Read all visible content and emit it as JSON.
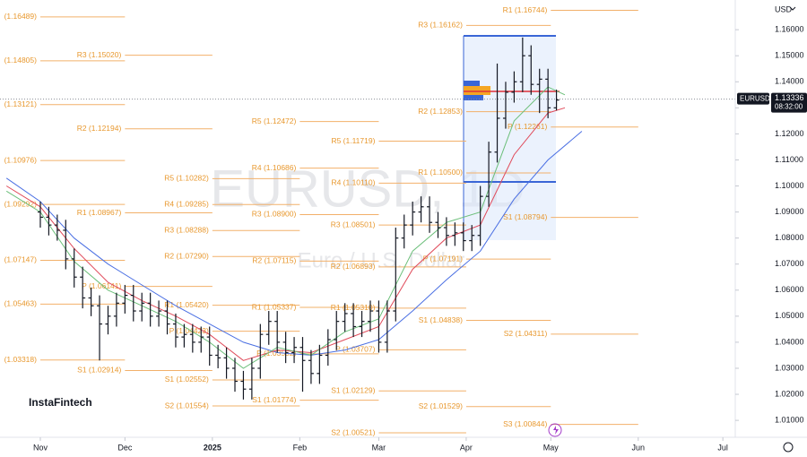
{
  "chart_data": {
    "type": "ohlc",
    "title": "EURUSD, 1D",
    "subtitle": "Euro / U.S. Dollar",
    "currency": "USD",
    "symbol": "EURUSD",
    "time": "08:32:00",
    "last_price": 1.13336,
    "color": "#131722",
    "x": [
      0,
      3,
      6,
      9,
      12,
      15,
      18,
      21,
      24,
      27,
      30,
      33,
      36,
      39,
      42,
      45,
      48,
      51,
      54,
      57,
      60,
      63,
      66,
      69,
      72,
      75,
      78,
      81,
      84,
      87,
      90,
      93,
      96,
      99,
      102,
      105,
      108,
      111,
      114,
      117,
      120,
      123,
      126,
      129,
      132,
      135,
      138,
      141,
      144,
      147,
      150,
      153,
      156,
      159,
      162,
      165,
      168,
      171,
      174,
      177,
      180,
      183
    ],
    "open": [
      1.09,
      1.088,
      1.085,
      1.083,
      1.072,
      1.065,
      1.057,
      1.054,
      1.047,
      1.05,
      1.055,
      1.058,
      1.052,
      1.055,
      1.05,
      1.052,
      1.047,
      1.042,
      1.043,
      1.04,
      1.042,
      1.035,
      1.034,
      1.03,
      1.025,
      1.022,
      1.03,
      1.043,
      1.048,
      1.04,
      1.036,
      1.038,
      1.033,
      1.028,
      1.035,
      1.041,
      1.048,
      1.051,
      1.046,
      1.048,
      1.052,
      1.04,
      1.052,
      1.08,
      1.085,
      1.09,
      1.092,
      1.086,
      1.084,
      1.081,
      1.082,
      1.079,
      1.081,
      1.096,
      1.113,
      1.126,
      1.136,
      1.14,
      1.15,
      1.139,
      1.141,
      1.13
    ],
    "high": [
      1.094,
      1.092,
      1.089,
      1.087,
      1.076,
      1.069,
      1.061,
      1.058,
      1.054,
      1.059,
      1.062,
      1.062,
      1.059,
      1.059,
      1.056,
      1.056,
      1.051,
      1.047,
      1.047,
      1.046,
      1.046,
      1.039,
      1.038,
      1.034,
      1.029,
      1.034,
      1.047,
      1.052,
      1.052,
      1.044,
      1.042,
      1.042,
      1.037,
      1.039,
      1.045,
      1.052,
      1.055,
      1.055,
      1.052,
      1.056,
      1.056,
      1.056,
      1.084,
      1.089,
      1.094,
      1.096,
      1.096,
      1.09,
      1.088,
      1.086,
      1.086,
      1.085,
      1.1,
      1.117,
      1.147,
      1.14,
      1.144,
      1.157,
      1.154,
      1.145,
      1.145,
      1.137
    ],
    "low": [
      1.084,
      1.081,
      1.079,
      1.068,
      1.061,
      1.053,
      1.05,
      1.033,
      1.043,
      1.046,
      1.051,
      1.048,
      1.048,
      1.046,
      1.046,
      1.043,
      1.038,
      1.038,
      1.036,
      1.036,
      1.031,
      1.03,
      1.026,
      1.021,
      1.018,
      1.018,
      1.026,
      1.039,
      1.036,
      1.032,
      1.032,
      1.021,
      1.024,
      1.024,
      1.031,
      1.037,
      1.044,
      1.042,
      1.042,
      1.044,
      1.036,
      1.036,
      1.048,
      1.076,
      1.081,
      1.086,
      1.082,
      1.08,
      1.077,
      1.077,
      1.075,
      1.075,
      1.077,
      1.092,
      1.109,
      1.122,
      1.132,
      1.136,
      1.135,
      1.128,
      1.126,
      1.129
    ],
    "close": [
      1.088,
      1.085,
      1.083,
      1.072,
      1.065,
      1.057,
      1.054,
      1.047,
      1.05,
      1.055,
      1.058,
      1.052,
      1.055,
      1.05,
      1.052,
      1.047,
      1.042,
      1.043,
      1.04,
      1.042,
      1.035,
      1.034,
      1.03,
      1.025,
      1.022,
      1.03,
      1.043,
      1.048,
      1.04,
      1.036,
      1.038,
      1.033,
      1.028,
      1.035,
      1.041,
      1.048,
      1.051,
      1.046,
      1.048,
      1.052,
      1.04,
      1.052,
      1.08,
      1.085,
      1.09,
      1.092,
      1.086,
      1.084,
      1.081,
      1.082,
      1.079,
      1.081,
      1.096,
      1.113,
      1.126,
      1.136,
      1.14,
      1.15,
      1.139,
      1.141,
      1.13,
      1.133
    ],
    "moving_averages": [
      {
        "color": "#4a6fe3",
        "x": [
          -12,
          0,
          12,
          24,
          36,
          48,
          60,
          72,
          84,
          96,
          108,
          120,
          132,
          144,
          156,
          168,
          180,
          192
        ],
        "values": [
          1.103,
          1.094,
          1.08,
          1.07,
          1.062,
          1.054,
          1.047,
          1.04,
          1.036,
          1.035,
          1.037,
          1.041,
          1.052,
          1.064,
          1.075,
          1.095,
          1.11,
          1.121
        ]
      },
      {
        "color": "#e04a5a",
        "x": [
          -12,
          0,
          12,
          24,
          36,
          48,
          60,
          72,
          84,
          96,
          108,
          120,
          132,
          144,
          156,
          168,
          180,
          186
        ],
        "values": [
          1.1,
          1.092,
          1.076,
          1.063,
          1.056,
          1.05,
          1.043,
          1.033,
          1.037,
          1.036,
          1.041,
          1.046,
          1.068,
          1.08,
          1.085,
          1.112,
          1.128,
          1.13
        ]
      },
      {
        "color": "#6cbf7a",
        "x": [
          -12,
          0,
          12,
          24,
          36,
          48,
          60,
          72,
          84,
          96,
          108,
          120,
          132,
          144,
          156,
          168,
          180,
          186
        ],
        "values": [
          1.098,
          1.09,
          1.071,
          1.06,
          1.054,
          1.048,
          1.04,
          1.03,
          1.038,
          1.035,
          1.044,
          1.049,
          1.075,
          1.086,
          1.09,
          1.125,
          1.138,
          1.135
        ]
      }
    ],
    "pivots": [
      {
        "start": 0,
        "end": 30,
        "levels": [
          {
            "label": "(1.16489)",
            "value": 1.16489
          },
          {
            "label": "(1.14805)",
            "value": 1.14805
          },
          {
            "label": "(1.13121)",
            "value": 1.13121
          },
          {
            "label": "(1.10976)",
            "value": 1.10976
          },
          {
            "label": "(1.09292)",
            "value": 1.09292
          },
          {
            "label": "(1.07147)",
            "value": 1.07147
          },
          {
            "label": "(1.05463)",
            "value": 1.05463
          },
          {
            "label": "(1.03318)",
            "value": 1.03318
          }
        ]
      },
      {
        "start": 30,
        "end": 61,
        "levels": [
          {
            "label": "R3 (1.15020)",
            "value": 1.1502
          },
          {
            "label": "R2 (1.12194)",
            "value": 1.12194
          },
          {
            "label": "R1 (1.08967)",
            "value": 1.08967
          },
          {
            "label": "P (1.06141)",
            "value": 1.06141
          },
          {
            "label": "S1 (1.02914)",
            "value": 1.02914
          }
        ]
      },
      {
        "start": 61,
        "end": 92,
        "levels": [
          {
            "label": "R5 (1.10282)",
            "value": 1.10282
          },
          {
            "label": "R4 (1.09285)",
            "value": 1.09285
          },
          {
            "label": "R3 (1.08288)",
            "value": 1.08288
          },
          {
            "label": "R2 (1.07290)",
            "value": 1.0729
          },
          {
            "label": "R1 (1.05420)",
            "value": 1.0542
          },
          {
            "label": "P (1.04423)",
            "value": 1.04423
          },
          {
            "label": "S1 (1.02552)",
            "value": 1.02552
          },
          {
            "label": "S2 (1.01554)",
            "value": 1.01554
          }
        ]
      },
      {
        "start": 92,
        "end": 120,
        "levels": [
          {
            "label": "R5 (1.12472)",
            "value": 1.12472
          },
          {
            "label": "R4 (1.10686)",
            "value": 1.10686
          },
          {
            "label": "R3 (1.08900)",
            "value": 1.089
          },
          {
            "label": "R2 (1.07115)",
            "value": 1.07115
          },
          {
            "label": "R1 (1.05337)",
            "value": 1.05337
          },
          {
            "label": "P (1.03552)",
            "value": 1.03552
          },
          {
            "label": "S1 (1.01774)",
            "value": 1.01774
          }
        ]
      },
      {
        "start": 120,
        "end": 151,
        "levels": [
          {
            "label": "R5 (1.11719)",
            "value": 1.11719
          },
          {
            "label": "R4 (1.10110)",
            "value": 1.1011
          },
          {
            "label": "R3 (1.08501)",
            "value": 1.08501
          },
          {
            "label": "R2 (1.06893)",
            "value": 1.06893
          },
          {
            "label": "R1 (1.05310)",
            "value": 1.0531
          },
          {
            "label": "P (1.03707)",
            "value": 1.03707
          },
          {
            "label": "S1 (1.02129)",
            "value": 1.02129
          },
          {
            "label": "S2 (1.00521)",
            "value": 1.00521
          }
        ]
      },
      {
        "start": 151,
        "end": 181,
        "levels": [
          {
            "label": "R3 (1.16162)",
            "value": 1.16162
          },
          {
            "label": "R2 (1.12853)",
            "value": 1.12853
          },
          {
            "label": "R1 (1.10500)",
            "value": 1.105
          },
          {
            "label": "P (1.07191)",
            "value": 1.07191
          },
          {
            "label": "S1 (1.04838)",
            "value": 1.04838
          },
          {
            "label": "S2 (1.01529)",
            "value": 1.01529
          }
        ]
      },
      {
        "start": 181,
        "end": 212,
        "levels": [
          {
            "label": "R1 (1.16744)",
            "value": 1.16744
          },
          {
            "label": "P (1.12261)",
            "value": 1.12261
          },
          {
            "label": "S1 (1.08794)",
            "value": 1.08794
          },
          {
            "label": "S2 (1.04311)",
            "value": 1.04311
          },
          {
            "label": "S3 (1.00844)",
            "value": 1.00844
          }
        ]
      }
    ],
    "xlim": [
      -14.3,
      246.4
    ],
    "ylim": [
      1.0035,
      1.1714
    ],
    "xticks": [
      {
        "value": 0,
        "label": "Nov"
      },
      {
        "value": 30,
        "label": "Dec"
      },
      {
        "value": 61,
        "label": "2025"
      },
      {
        "value": 92,
        "label": "Feb"
      },
      {
        "value": 120,
        "label": "Mar"
      },
      {
        "value": 151,
        "label": "Apr"
      },
      {
        "value": 181,
        "label": "May"
      },
      {
        "value": 212,
        "label": "Jun"
      },
      {
        "value": 242,
        "label": "Jul"
      }
    ],
    "yticks": [
      {
        "value": 1.01,
        "label": "1.01000"
      },
      {
        "value": 1.02,
        "label": "1.02000"
      },
      {
        "value": 1.03,
        "label": "1.03000"
      },
      {
        "value": 1.04,
        "label": "1.04000"
      },
      {
        "value": 1.05,
        "label": "1.05000"
      },
      {
        "value": 1.06,
        "label": "1.06000"
      },
      {
        "value": 1.07,
        "label": "1.07000"
      },
      {
        "value": 1.08,
        "label": "1.08000"
      },
      {
        "value": 1.09,
        "label": "1.09000"
      },
      {
        "value": 1.1,
        "label": "1.10000"
      },
      {
        "value": 1.11,
        "label": "1.11000"
      },
      {
        "value": 1.12,
        "label": "1.12000"
      },
      {
        "value": 1.13,
        "label": "1.13000"
      },
      {
        "value": 1.14,
        "label": "1.14000"
      },
      {
        "value": 1.15,
        "label": "1.15000"
      },
      {
        "value": 1.16,
        "label": "1.16000"
      }
    ]
  },
  "branding": {
    "name": "InstaFintech"
  }
}
